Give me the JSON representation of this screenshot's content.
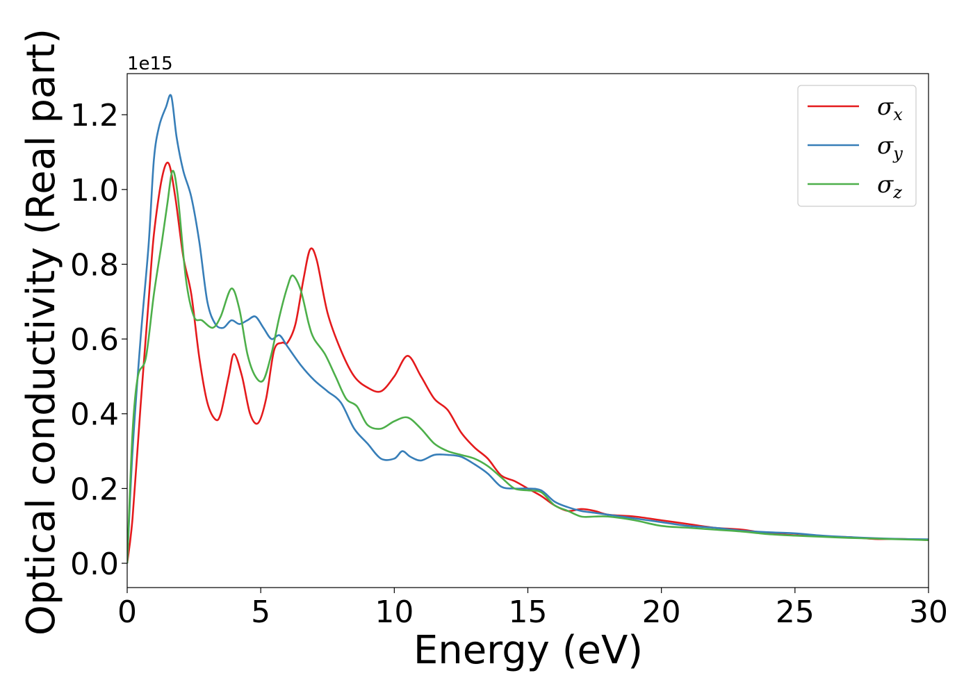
{
  "chart_data": {
    "type": "line",
    "title": "",
    "xlabel": "Energy (eV)",
    "ylabel": "Optical conductivity (Real part)",
    "y_offset_label": "1e15",
    "xlim": [
      0,
      30
    ],
    "ylim": [
      -0.065,
      1.31
    ],
    "x_ticks": [
      0,
      5,
      10,
      15,
      20,
      25,
      30
    ],
    "x_tick_labels": [
      "0",
      "5",
      "10",
      "15",
      "20",
      "25",
      "30"
    ],
    "y_ticks": [
      0.0,
      0.2,
      0.4,
      0.6,
      0.8,
      1.0,
      1.2
    ],
    "y_tick_labels": [
      "0.0",
      "0.2",
      "0.4",
      "0.6",
      "0.8",
      "1.0",
      "1.2"
    ],
    "grid": false,
    "legend_position": "top-right",
    "series": [
      {
        "name": "σ",
        "subscript": "x",
        "color": "#e41a1c",
        "x": [
          0,
          0.2,
          0.5,
          0.8,
          1.0,
          1.3,
          1.55,
          1.8,
          2.1,
          2.4,
          2.7,
          3.0,
          3.3,
          3.5,
          3.8,
          4.0,
          4.3,
          4.6,
          4.9,
          5.2,
          5.5,
          5.8,
          6.0,
          6.3,
          6.6,
          6.85,
          7.1,
          7.5,
          8.0,
          8.5,
          9.0,
          9.5,
          10.0,
          10.5,
          11.0,
          11.5,
          12.0,
          12.5,
          13.0,
          13.5,
          14.0,
          14.5,
          15.0,
          15.5,
          16.0,
          16.5,
          17.0,
          17.5,
          18.0,
          19.0,
          20.0,
          21.0,
          22.0,
          23.0,
          24.0,
          25.0,
          26.0,
          27.0,
          28.0,
          29.0,
          30.0
        ],
        "values": [
          0.0,
          0.12,
          0.42,
          0.7,
          0.88,
          1.03,
          1.07,
          0.98,
          0.82,
          0.72,
          0.55,
          0.43,
          0.385,
          0.4,
          0.5,
          0.56,
          0.5,
          0.4,
          0.375,
          0.44,
          0.57,
          0.59,
          0.59,
          0.64,
          0.76,
          0.84,
          0.81,
          0.67,
          0.57,
          0.5,
          0.47,
          0.46,
          0.5,
          0.555,
          0.5,
          0.44,
          0.41,
          0.35,
          0.31,
          0.28,
          0.235,
          0.22,
          0.2,
          0.18,
          0.155,
          0.14,
          0.145,
          0.14,
          0.13,
          0.125,
          0.115,
          0.105,
          0.095,
          0.09,
          0.08,
          0.075,
          0.072,
          0.07,
          0.065,
          0.065,
          0.062
        ]
      },
      {
        "name": "σ",
        "subscript": "y",
        "color": "#377eb8",
        "x": [
          0,
          0.2,
          0.5,
          0.8,
          1.0,
          1.2,
          1.45,
          1.65,
          1.85,
          2.1,
          2.4,
          2.7,
          3.0,
          3.3,
          3.6,
          3.9,
          4.2,
          4.5,
          4.8,
          5.1,
          5.4,
          5.7,
          6.0,
          6.5,
          7.0,
          7.5,
          8.0,
          8.5,
          9.0,
          9.5,
          10.0,
          10.3,
          10.6,
          11.0,
          11.5,
          12.0,
          12.5,
          13.0,
          13.5,
          14.0,
          14.5,
          15.0,
          15.5,
          16.0,
          16.5,
          17.0,
          17.5,
          18.0,
          19.0,
          20.0,
          21.0,
          22.0,
          23.0,
          24.0,
          25.0,
          26.0,
          27.0,
          28.0,
          29.0,
          30.0
        ],
        "values": [
          0.0,
          0.3,
          0.6,
          0.85,
          1.08,
          1.17,
          1.22,
          1.25,
          1.14,
          1.05,
          0.98,
          0.86,
          0.7,
          0.64,
          0.63,
          0.65,
          0.64,
          0.65,
          0.66,
          0.63,
          0.6,
          0.61,
          0.58,
          0.53,
          0.49,
          0.46,
          0.43,
          0.36,
          0.32,
          0.28,
          0.28,
          0.3,
          0.285,
          0.275,
          0.29,
          0.29,
          0.285,
          0.265,
          0.24,
          0.205,
          0.2,
          0.2,
          0.195,
          0.165,
          0.15,
          0.14,
          0.135,
          0.13,
          0.12,
          0.11,
          0.1,
          0.095,
          0.087,
          0.083,
          0.08,
          0.074,
          0.07,
          0.067,
          0.065,
          0.064
        ]
      },
      {
        "name": "σ",
        "subscript": "z",
        "color": "#4daf4a",
        "x": [
          0,
          0.2,
          0.4,
          0.7,
          1.0,
          1.3,
          1.5,
          1.7,
          1.9,
          2.2,
          2.5,
          2.8,
          3.2,
          3.5,
          3.9,
          4.2,
          4.5,
          4.8,
          5.1,
          5.4,
          5.7,
          6.0,
          6.2,
          6.5,
          6.8,
          7.0,
          7.4,
          7.8,
          8.2,
          8.6,
          9.0,
          9.5,
          10.0,
          10.5,
          11.0,
          11.5,
          12.0,
          12.5,
          13.0,
          13.5,
          14.0,
          14.5,
          15.0,
          15.5,
          16.0,
          16.5,
          17.0,
          17.5,
          18.0,
          19.0,
          20.0,
          21.0,
          22.0,
          23.0,
          24.0,
          25.0,
          26.0,
          27.0,
          28.0,
          29.0,
          30.0
        ],
        "values": [
          0.0,
          0.35,
          0.5,
          0.55,
          0.72,
          0.86,
          0.96,
          1.05,
          0.98,
          0.76,
          0.66,
          0.65,
          0.63,
          0.66,
          0.735,
          0.68,
          0.56,
          0.5,
          0.49,
          0.56,
          0.66,
          0.74,
          0.77,
          0.73,
          0.64,
          0.6,
          0.56,
          0.5,
          0.44,
          0.42,
          0.37,
          0.36,
          0.38,
          0.39,
          0.36,
          0.32,
          0.3,
          0.29,
          0.28,
          0.26,
          0.23,
          0.2,
          0.195,
          0.19,
          0.155,
          0.14,
          0.125,
          0.125,
          0.125,
          0.115,
          0.1,
          0.095,
          0.09,
          0.085,
          0.078,
          0.074,
          0.071,
          0.068,
          0.066,
          0.064,
          0.062
        ]
      }
    ]
  }
}
